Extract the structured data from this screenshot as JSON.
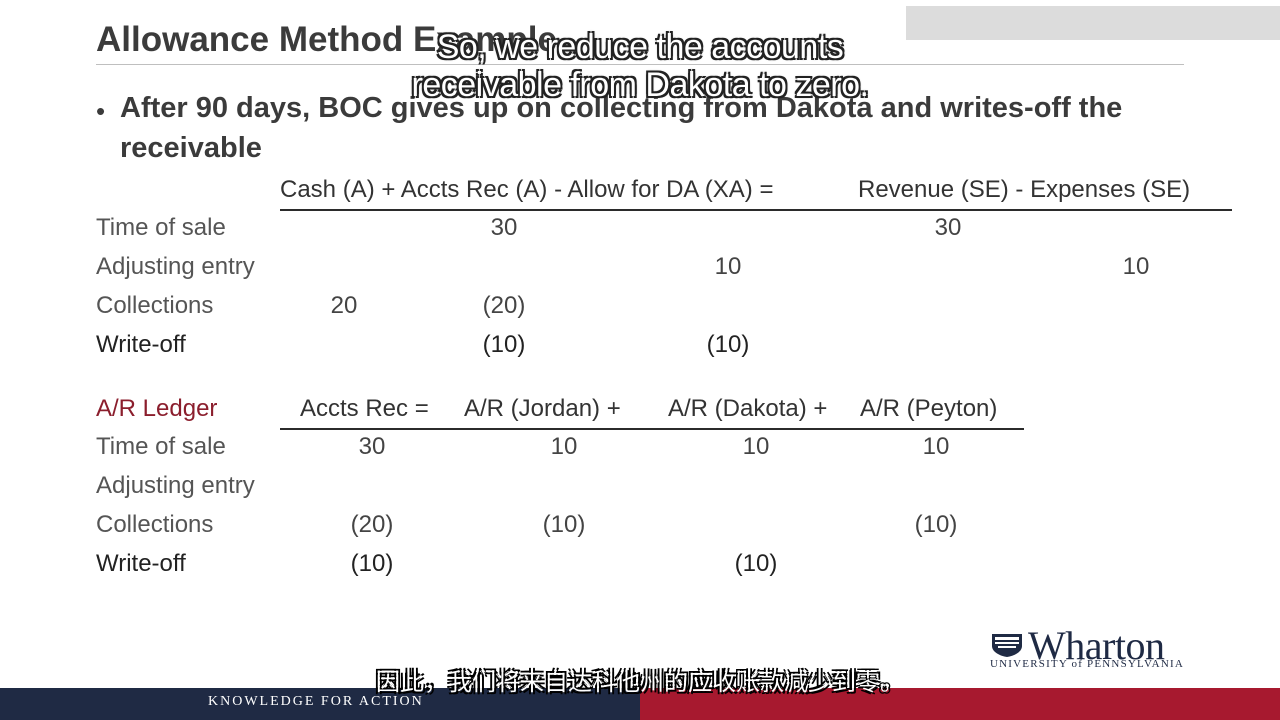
{
  "slide": {
    "title": "Allowance Method Example",
    "bullet": "After 90 days, BOC gives up on collecting from Dakota and writes-off the receivable"
  },
  "equation_table": {
    "headers": [
      "Cash (A) + Accts Rec (A) - Allow for DA (XA) =",
      "Revenue (SE) - Expenses (SE)"
    ],
    "rows": [
      {
        "label": "Time of sale",
        "cash": "",
        "ar": "30",
        "allow": "",
        "rev": "30",
        "exp": ""
      },
      {
        "label": "Adjusting entry",
        "cash": "",
        "ar": "",
        "allow": "10",
        "rev": "",
        "exp": "10"
      },
      {
        "label": "Collections",
        "cash": "20",
        "ar": "(20)",
        "allow": "",
        "rev": "",
        "exp": ""
      },
      {
        "label": "Write-off",
        "cash": "",
        "ar": "(10)",
        "allow": "(10)",
        "rev": "",
        "exp": ""
      }
    ]
  },
  "ledger_table": {
    "title": "A/R Ledger",
    "headers": [
      "Accts Rec =",
      "A/R (Jordan) +",
      "A/R (Dakota) +",
      "A/R (Peyton)"
    ],
    "rows": [
      {
        "label": "Time of sale",
        "ar": "30",
        "jordan": "10",
        "dakota": "10",
        "peyton": "10"
      },
      {
        "label": "Adjusting entry",
        "ar": "",
        "jordan": "",
        "dakota": "",
        "peyton": ""
      },
      {
        "label": "Collections",
        "ar": "(20)",
        "jordan": "(10)",
        "dakota": "",
        "peyton": "(10)"
      },
      {
        "label": "Write-off",
        "ar": "(10)",
        "jordan": "",
        "dakota": "(10)",
        "peyton": ""
      }
    ]
  },
  "captions": {
    "en_line1": "So, we reduce the accounts",
    "en_line2": "receivable from Dakota to zero.",
    "cn": "因此，我们将来自达科他州的应收账款减少到零。"
  },
  "branding": {
    "logo": "Wharton",
    "logo_sub": "UNIVERSITY of PENNSYLVANIA",
    "footer_tagline": "KNOWLEDGE FOR ACTION",
    "colors": {
      "navy": "#1f2a44",
      "red": "#a7192f",
      "ledger_title": "#8b1e2d"
    }
  }
}
